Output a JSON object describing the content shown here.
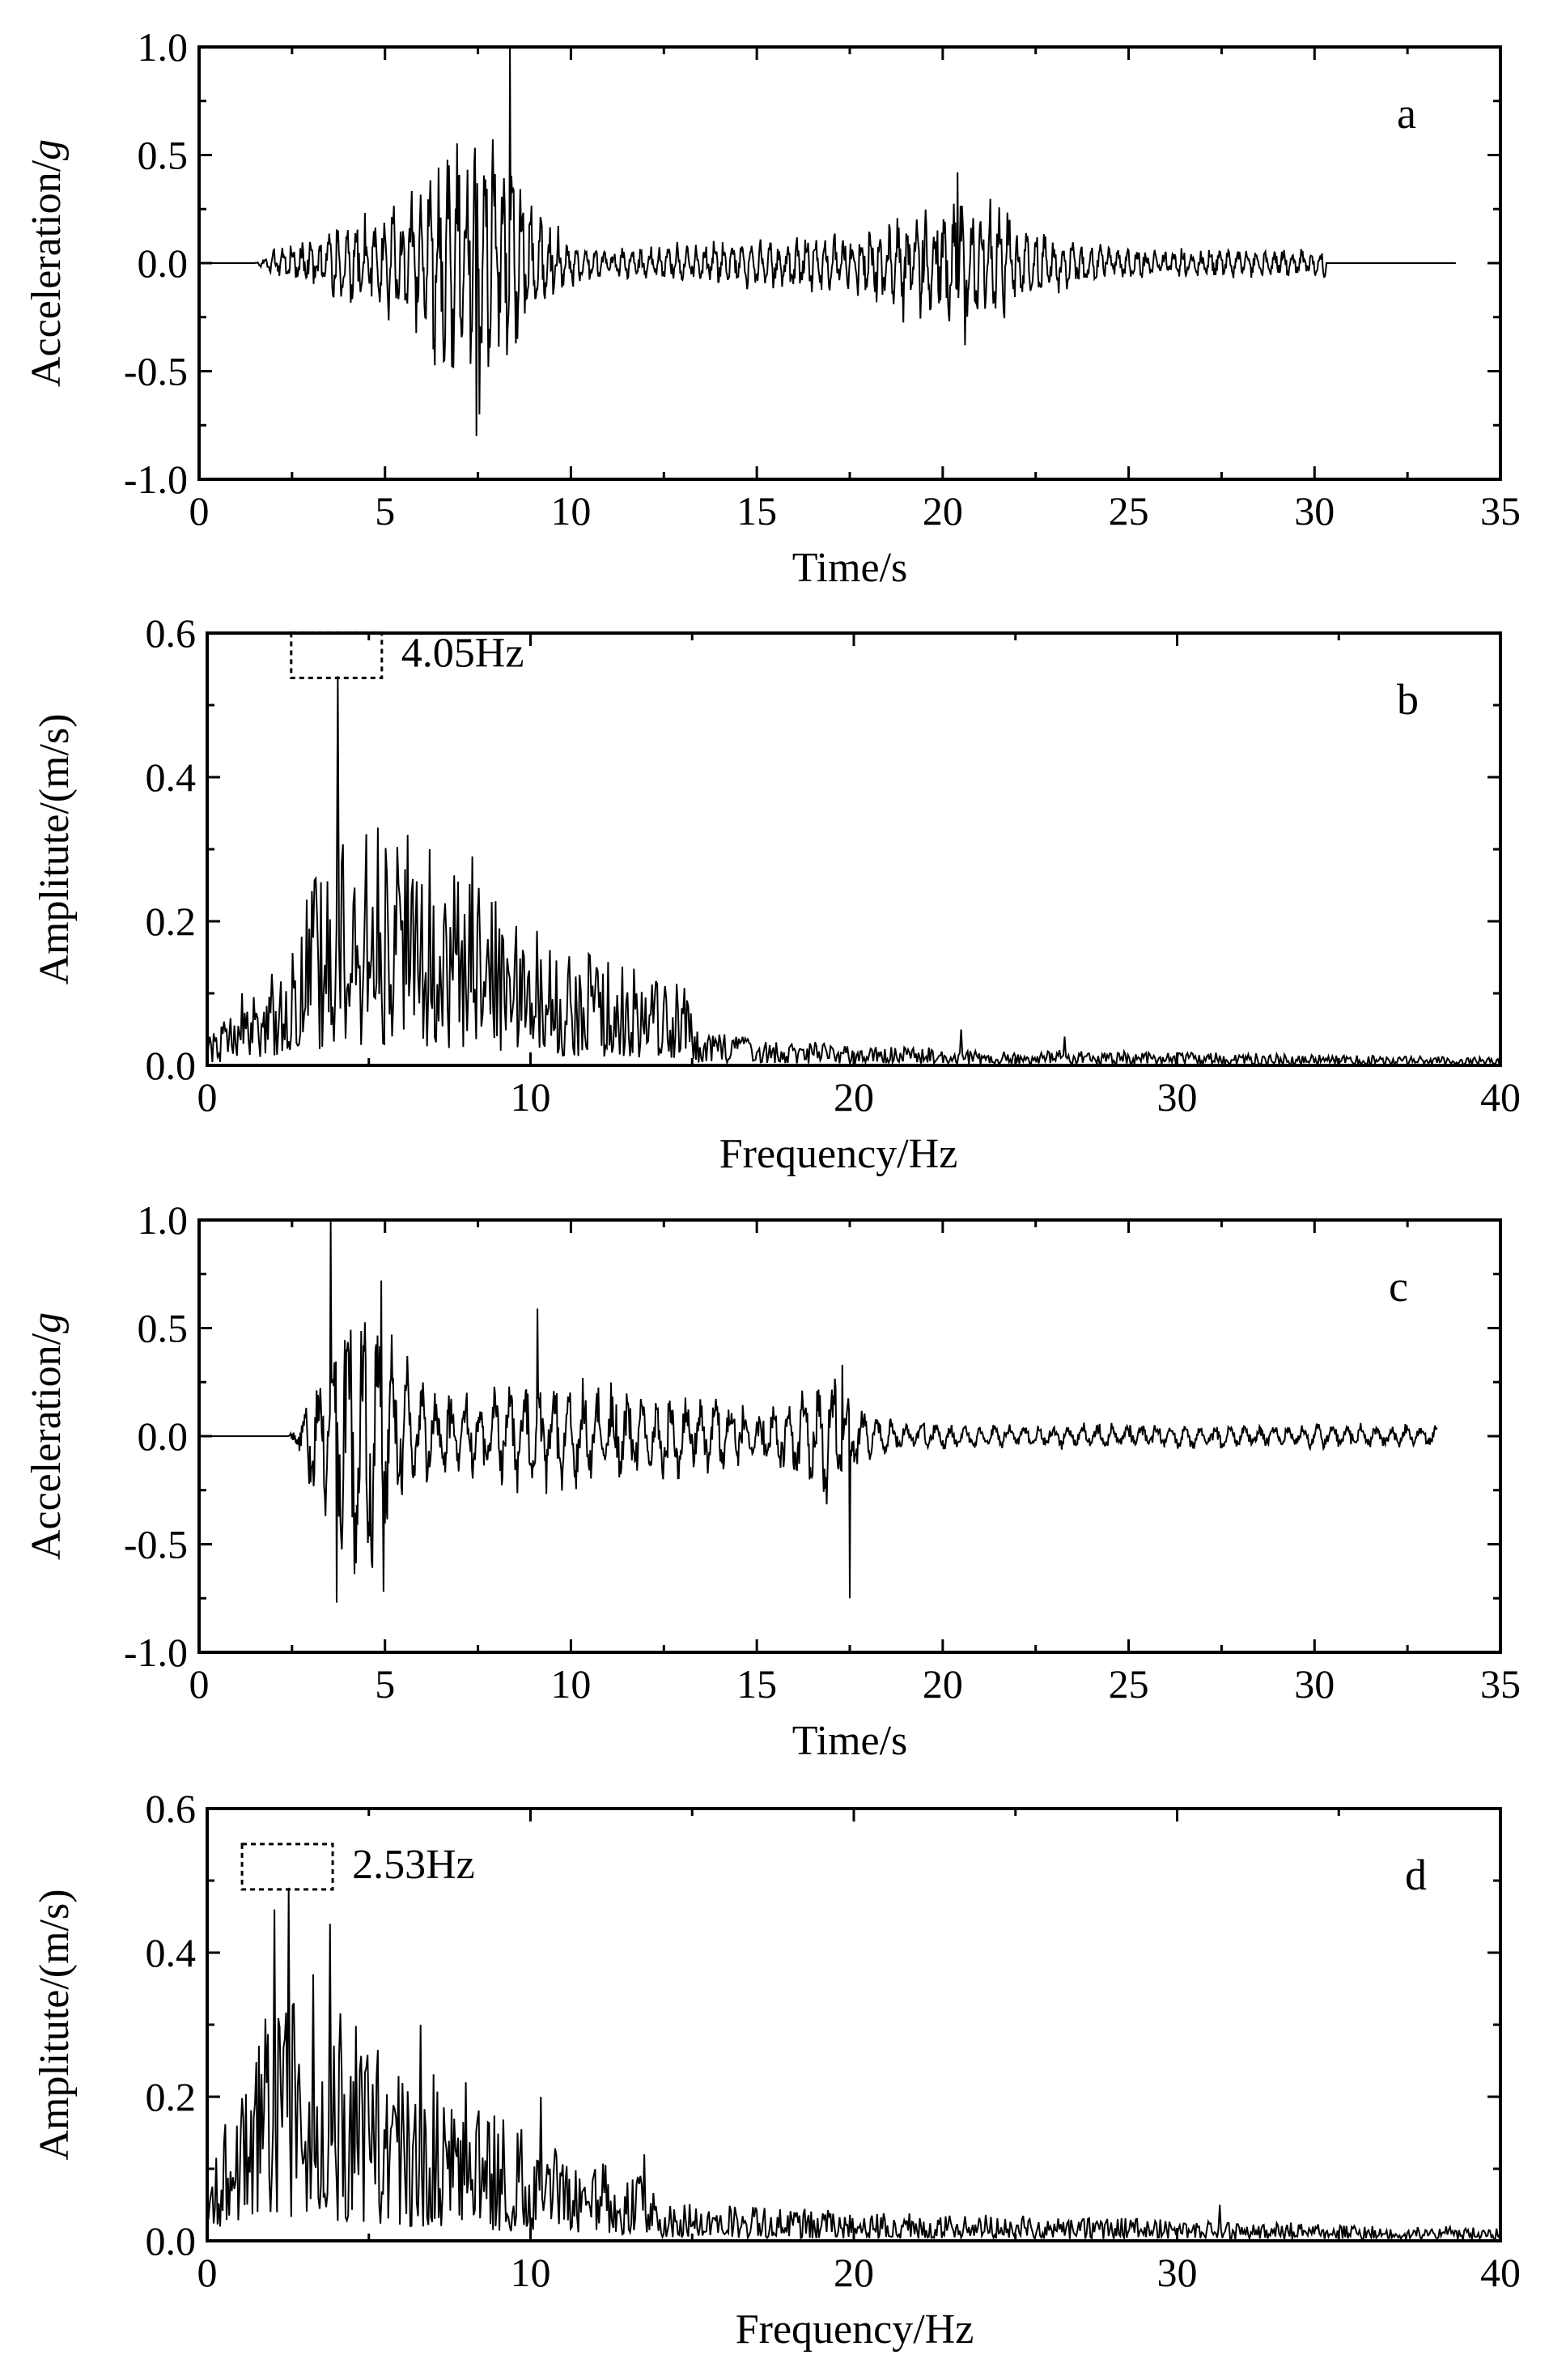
{
  "chart_data": [
    {
      "type": "line",
      "panel_label": "a",
      "xlabel": "Time/s",
      "ylabel": "Acceleration/",
      "ylabel_italic": "g",
      "xlim": [
        0,
        35
      ],
      "ylim": [
        -1.0,
        1.0
      ],
      "xticks": [
        0,
        5,
        10,
        15,
        20,
        25,
        30,
        35
      ],
      "yticks": [
        -1.0,
        -0.5,
        0.0,
        0.5,
        1.0
      ],
      "xtick_labels": [
        "0",
        "5",
        "10",
        "15",
        "20",
        "25",
        "30",
        "35"
      ],
      "ytick_labels": [
        "-1.0",
        "-0.5",
        "0.0",
        "0.5",
        "1.0"
      ],
      "series_description": "acceleration time history",
      "signal": {
        "kind": "time",
        "start": 1.5,
        "end": 30.3,
        "line_end": 33.8,
        "bursts": [
          {
            "center": 7.3,
            "width": 1.7,
            "amp": 0.55
          },
          {
            "center": 4.2,
            "width": 1.2,
            "amp": 0.12
          },
          {
            "center": 20.5,
            "width": 2.4,
            "amp": 0.22
          },
          {
            "center": 15.5,
            "width": 3.0,
            "amp": 0.05
          }
        ],
        "base_amp": 0.06,
        "tail": {
          "from": 22,
          "to": 30.3,
          "amp": 0.05
        },
        "freq_hz": 4.05,
        "peaks": [
          {
            "x": 8.35,
            "y": 1.0
          },
          {
            "x": 7.45,
            "y": -0.8
          },
          {
            "x": 20.4,
            "y": 0.42
          },
          {
            "x": 20.6,
            "y": -0.38
          }
        ]
      }
    },
    {
      "type": "line",
      "panel_label": "b",
      "xlabel": "Frequency/Hz",
      "ylabel": "Amplitute/(m/s)",
      "xlim": [
        0,
        40
      ],
      "ylim": [
        0.0,
        0.6
      ],
      "xticks": [
        0,
        10,
        20,
        30,
        40
      ],
      "yticks": [
        0.0,
        0.2,
        0.4,
        0.6
      ],
      "xtick_labels": [
        "0",
        "10",
        "20",
        "30",
        "40"
      ],
      "ytick_labels": [
        "0.0",
        "0.2",
        "0.4",
        "0.6"
      ],
      "annotation": {
        "text": "4.05Hz",
        "x": 4.05,
        "y": 0.54
      },
      "signal": {
        "kind": "spectrum",
        "envelope": [
          [
            0,
            0.02
          ],
          [
            1,
            0.05
          ],
          [
            2.5,
            0.09
          ],
          [
            4,
            0.18
          ],
          [
            6,
            0.17
          ],
          [
            8,
            0.14
          ],
          [
            11,
            0.09
          ],
          [
            14.8,
            0.06
          ],
          [
            15.2,
            0.025
          ],
          [
            20,
            0.015
          ],
          [
            25,
            0.012
          ],
          [
            30,
            0.01
          ],
          [
            40,
            0.006
          ]
        ],
        "peaks": [
          {
            "x": 4.05,
            "y": 0.54
          },
          {
            "x": 5.3,
            "y": 0.33
          },
          {
            "x": 6.2,
            "y": 0.32
          },
          {
            "x": 6.9,
            "y": 0.3
          },
          {
            "x": 8.2,
            "y": 0.29
          },
          {
            "x": 3.1,
            "y": 0.23
          },
          {
            "x": 1.1,
            "y": 0.1
          },
          {
            "x": 23.3,
            "y": 0.05
          },
          {
            "x": 26.5,
            "y": 0.04
          }
        ]
      }
    },
    {
      "type": "line",
      "panel_label": "c",
      "xlabel": "Time/s",
      "ylabel": "Acceleration/",
      "ylabel_italic": "g",
      "xlim": [
        0,
        35
      ],
      "ylim": [
        -1.0,
        1.0
      ],
      "xticks": [
        0,
        5,
        10,
        15,
        20,
        25,
        30,
        35
      ],
      "yticks": [
        -1.0,
        -0.5,
        0.0,
        0.5,
        1.0
      ],
      "xtick_labels": [
        "0",
        "5",
        "10",
        "15",
        "20",
        "25",
        "30",
        "35"
      ],
      "ytick_labels": [
        "-1.0",
        "-0.5",
        "0.0",
        "0.5",
        "1.0"
      ],
      "series_description": "acceleration time history",
      "signal": {
        "kind": "time",
        "start": 2.4,
        "end": 33.3,
        "line_end": 33.3,
        "bursts": [
          {
            "center": 4.3,
            "width": 1.2,
            "amp": 0.55
          },
          {
            "center": 10.0,
            "width": 5.0,
            "amp": 0.18
          },
          {
            "center": 16.8,
            "width": 1.0,
            "amp": 0.2
          }
        ],
        "base_amp": 0.05,
        "tail": {
          "from": 20,
          "to": 33.3,
          "amp": 0.03
        },
        "freq_hz": 2.53,
        "peaks": [
          {
            "x": 3.55,
            "y": 1.0
          },
          {
            "x": 3.7,
            "y": -0.77
          },
          {
            "x": 4.9,
            "y": 0.72
          },
          {
            "x": 4.95,
            "y": -0.72
          },
          {
            "x": 9.1,
            "y": 0.59
          },
          {
            "x": 17.5,
            "y": -0.75
          },
          {
            "x": 17.3,
            "y": 0.33
          }
        ]
      }
    },
    {
      "type": "line",
      "panel_label": "d",
      "xlabel": "Frequency/Hz",
      "ylabel": "Amplitute/(m/s)",
      "xlim": [
        0,
        40
      ],
      "ylim": [
        0.0,
        0.6
      ],
      "xticks": [
        0,
        10,
        20,
        30,
        40
      ],
      "yticks": [
        0.0,
        0.2,
        0.4,
        0.6
      ],
      "xtick_labels": [
        "0",
        "10",
        "20",
        "30",
        "40"
      ],
      "ytick_labels": [
        "0.0",
        "0.2",
        "0.4",
        "0.6"
      ],
      "annotation": {
        "text": "2.53Hz",
        "x": 2.53,
        "y": 0.49
      },
      "signal": {
        "kind": "spectrum",
        "envelope": [
          [
            0,
            0.05
          ],
          [
            1,
            0.13
          ],
          [
            2.5,
            0.2
          ],
          [
            4,
            0.18
          ],
          [
            6,
            0.14
          ],
          [
            8,
            0.11
          ],
          [
            10,
            0.08
          ],
          [
            13.5,
            0.05
          ],
          [
            14,
            0.03
          ],
          [
            20,
            0.022
          ],
          [
            30,
            0.016
          ],
          [
            40,
            0.01
          ]
        ],
        "peaks": [
          {
            "x": 2.53,
            "y": 0.49
          },
          {
            "x": 2.1,
            "y": 0.46
          },
          {
            "x": 3.8,
            "y": 0.44
          },
          {
            "x": 3.3,
            "y": 0.37
          },
          {
            "x": 6.6,
            "y": 0.3
          },
          {
            "x": 8.0,
            "y": 0.22
          },
          {
            "x": 10.3,
            "y": 0.2
          },
          {
            "x": 13.5,
            "y": 0.12
          },
          {
            "x": 31.3,
            "y": 0.05
          }
        ]
      }
    }
  ]
}
